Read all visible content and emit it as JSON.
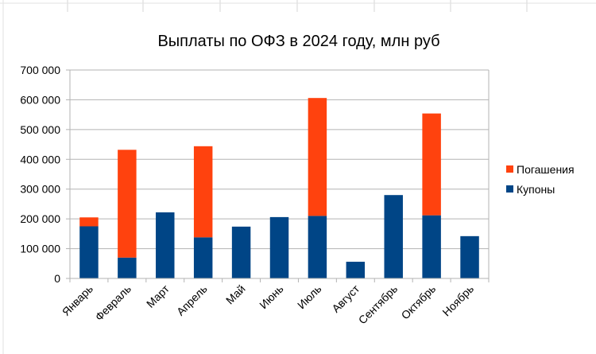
{
  "chart_data": {
    "type": "bar",
    "stacked": true,
    "title": "Выплаты по ОФЗ в 2024 году, млн руб",
    "xlabel": "",
    "ylabel": "",
    "categories": [
      "Январь",
      "Февраль",
      "Март",
      "Апрель",
      "Май",
      "Июнь",
      "Июль",
      "Август",
      "Сентябрь",
      "Октябрь",
      "Ноябрь"
    ],
    "series": [
      {
        "name": "Купоны",
        "color": "#004586",
        "values": [
          175000,
          70000,
          222000,
          138000,
          174000,
          206000,
          210000,
          56000,
          280000,
          212000,
          142000
        ]
      },
      {
        "name": "Погашения",
        "color": "#ff420e",
        "values": [
          30000,
          362000,
          0,
          306000,
          0,
          0,
          396000,
          0,
          0,
          342000,
          0
        ]
      }
    ],
    "ylim": [
      0,
      700000
    ],
    "yticks": [
      0,
      100000,
      200000,
      300000,
      400000,
      500000,
      600000,
      700000
    ],
    "ytick_labels": [
      "0",
      "100 000",
      "200 000",
      "300 000",
      "400 000",
      "500 000",
      "600 000",
      "700 000"
    ],
    "grid": true,
    "legend_position": "right"
  }
}
